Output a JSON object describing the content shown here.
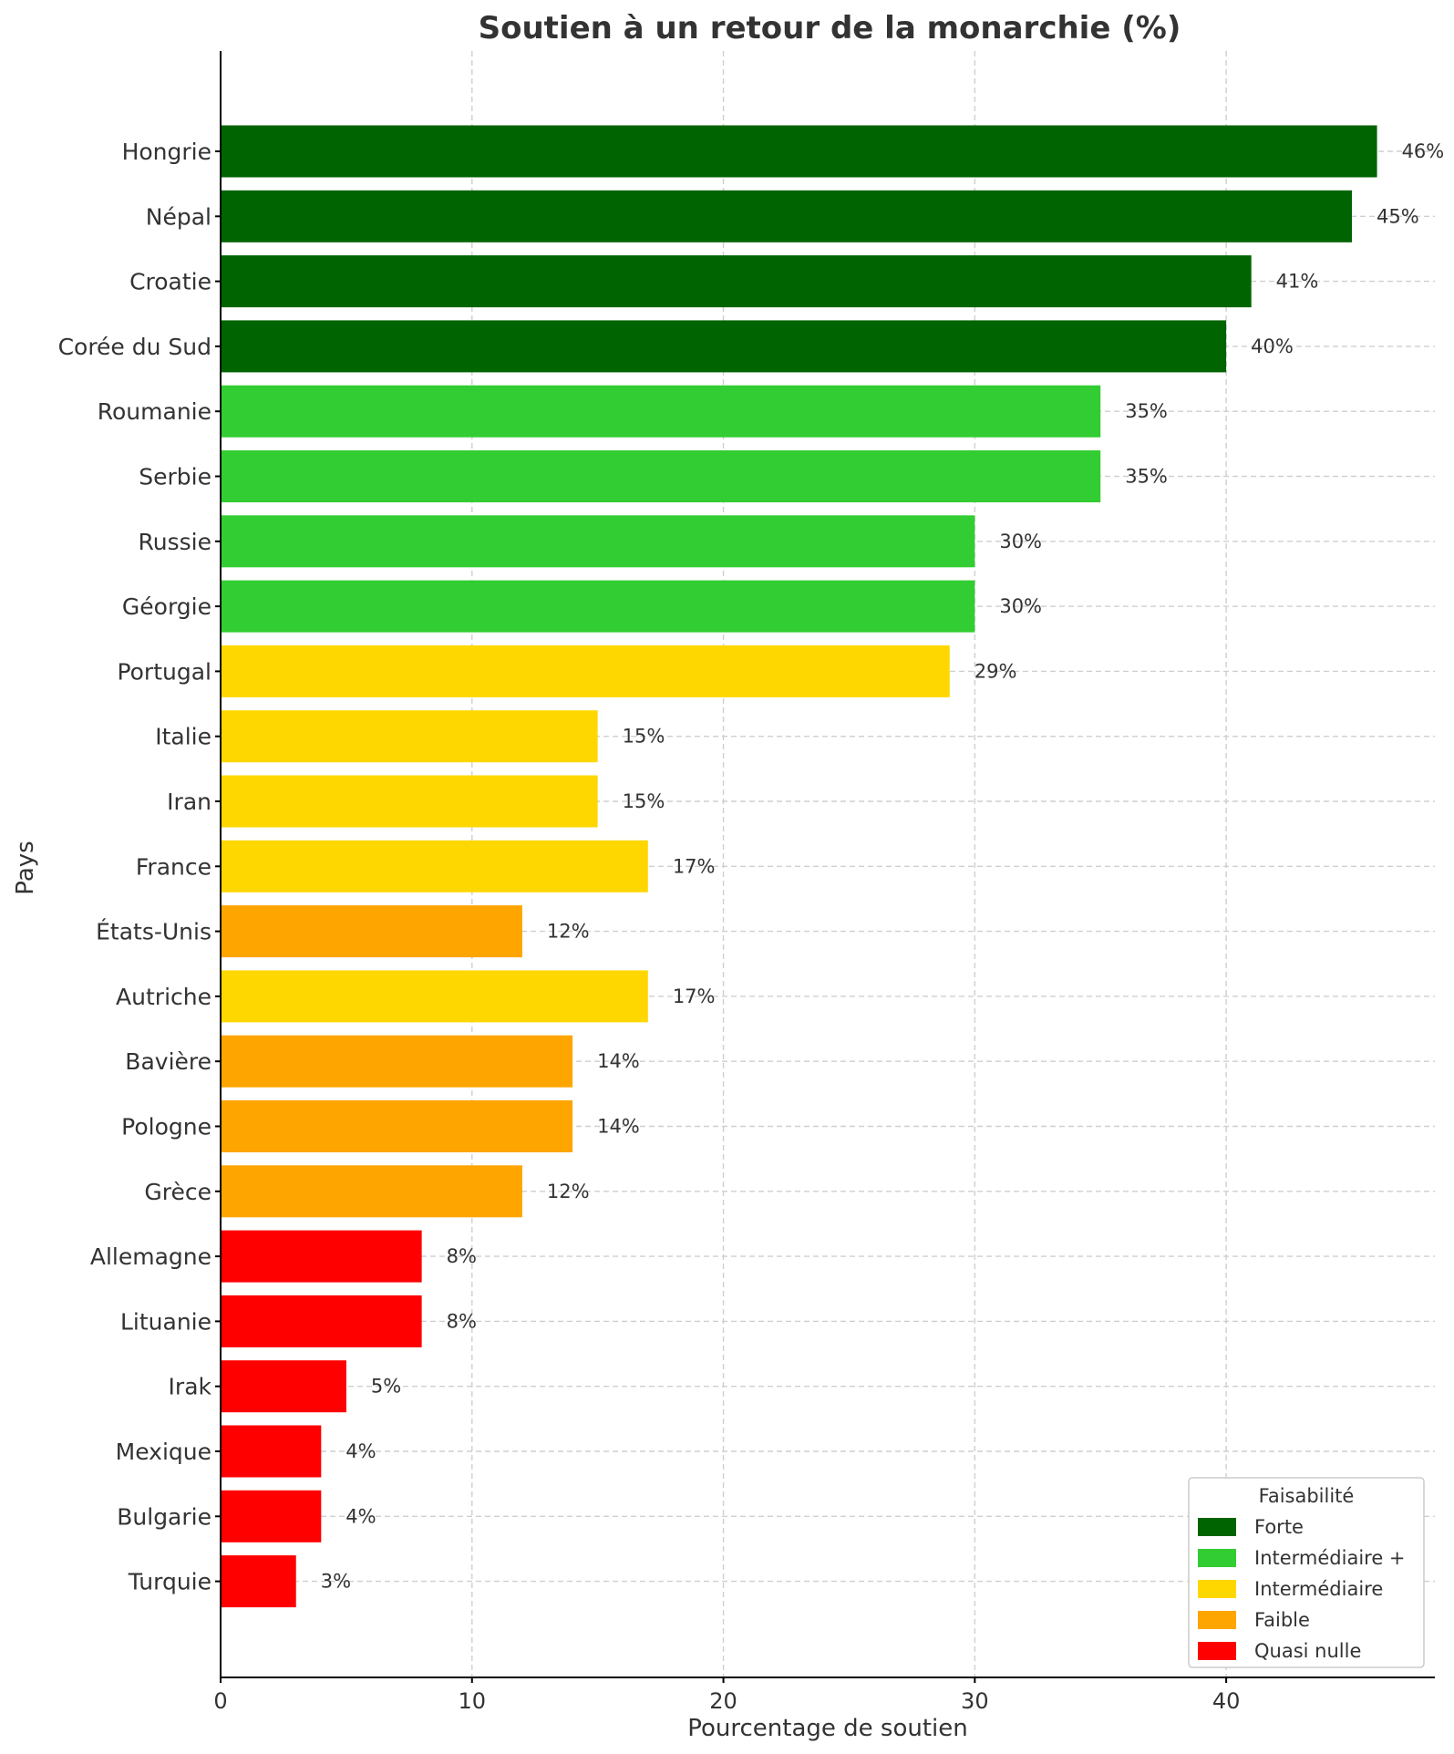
{
  "chart_data": {
    "type": "bar",
    "orientation": "horizontal",
    "title": "Soutien à un retour de la monarchie (%)",
    "xlabel": "Pourcentage de soutien",
    "ylabel": "Pays",
    "xlim": [
      0,
      48.3
    ],
    "xticks": [
      0,
      10,
      20,
      30,
      40
    ],
    "grid": true,
    "categories": [
      "Hongrie",
      "Népal",
      "Croatie",
      "Corée du Sud",
      "Roumanie",
      "Serbie",
      "Russie",
      "Géorgie",
      "Portugal",
      "Italie",
      "Iran",
      "France",
      "États-Unis",
      "Autriche",
      "Bavière",
      "Pologne",
      "Grèce",
      "Allemagne",
      "Lituanie",
      "Irak",
      "Mexique",
      "Bulgarie",
      "Turquie"
    ],
    "values": [
      46,
      45,
      41,
      40,
      35,
      35,
      30,
      30,
      29,
      15,
      15,
      17,
      12,
      17,
      14,
      14,
      12,
      8,
      8,
      5,
      4,
      4,
      3
    ],
    "data_labels": [
      "46%",
      "45%",
      "41%",
      "40%",
      "35%",
      "35%",
      "30%",
      "30%",
      "29%",
      "15%",
      "15%",
      "17%",
      "12%",
      "17%",
      "14%",
      "14%",
      "12%",
      "8%",
      "8%",
      "5%",
      "4%",
      "4%",
      "3%"
    ],
    "groups": [
      "Forte",
      "Forte",
      "Forte",
      "Forte",
      "Intermédiaire +",
      "Intermédiaire +",
      "Intermédiaire +",
      "Intermédiaire +",
      "Intermédiaire",
      "Intermédiaire",
      "Intermédiaire",
      "Intermédiaire",
      "Faible",
      "Intermédiaire",
      "Faible",
      "Faible",
      "Faible",
      "Quasi nulle",
      "Quasi nulle",
      "Quasi nulle",
      "Quasi nulle",
      "Quasi nulle",
      "Quasi nulle"
    ],
    "legend": {
      "title": "Faisabilité",
      "position": "bottom-right",
      "entries": [
        {
          "label": "Forte",
          "color": "#006400"
        },
        {
          "label": "Intermédiaire +",
          "color": "#32CD32"
        },
        {
          "label": "Intermédiaire",
          "color": "#FFD700"
        },
        {
          "label": "Faible",
          "color": "#FFA500"
        },
        {
          "label": "Quasi nulle",
          "color": "#FF0000"
        }
      ]
    }
  }
}
